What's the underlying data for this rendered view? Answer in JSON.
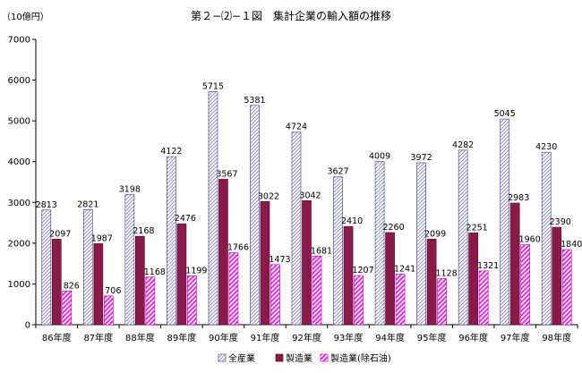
{
  "chart_data": {
    "type": "bar",
    "title": "第２−⑵−１図　集計企業の輸入額の推移",
    "unit_label": "（10億円）",
    "ylim": [
      0,
      7000
    ],
    "yticks": [
      0,
      1000,
      2000,
      3000,
      4000,
      5000,
      6000,
      7000
    ],
    "categories": [
      "86年度",
      "87年度",
      "88年度",
      "89年度",
      "90年度",
      "91年度",
      "92年度",
      "93年度",
      "94年度",
      "95年度",
      "96年度",
      "97年度",
      "98年度"
    ],
    "series": [
      {
        "name": "全産業",
        "values": [
          2813,
          2821,
          3198,
          4122,
          5715,
          5381,
          4724,
          3627,
          4009,
          3972,
          4282,
          5045,
          4230
        ],
        "color": "#e8e8ff",
        "pattern": "diag-blue"
      },
      {
        "name": "製造業",
        "values": [
          2097,
          1987,
          2168,
          2476,
          3567,
          3022,
          3042,
          2410,
          2260,
          2099,
          2251,
          2983,
          2390
        ],
        "color": "#8b1a4a",
        "pattern": "solid"
      },
      {
        "name": "製造業(除石油)",
        "values": [
          826,
          706,
          1168,
          1199,
          1766,
          1473,
          1681,
          1207,
          1241,
          1128,
          1321,
          1960,
          1840
        ],
        "color": "#ff00ff",
        "pattern": "diag-magenta"
      }
    ],
    "grid": false,
    "legend_position": "bottom"
  }
}
